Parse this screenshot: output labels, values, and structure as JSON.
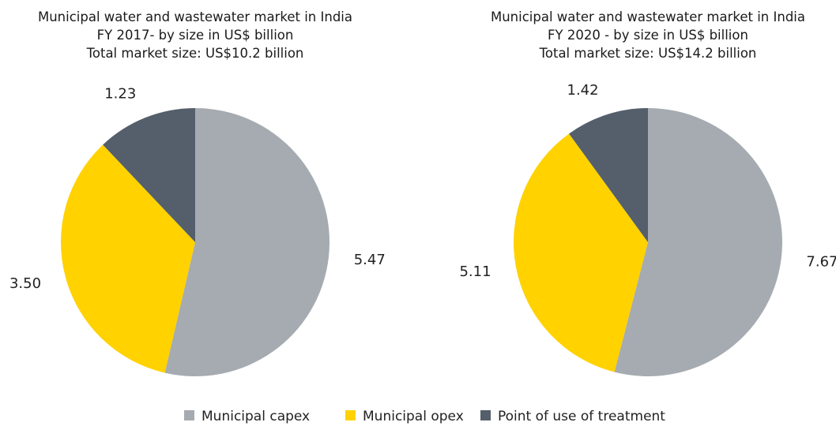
{
  "chart_data": [
    {
      "type": "pie",
      "title": "Municipal water and wastewater market in India FY 2017- by size in US$ billion",
      "subtitle": "Total market size: US$10.2 billion",
      "categories": [
        "Municipal capex",
        "Municipal opex",
        "Point of use of treatment"
      ],
      "values": [
        5.47,
        3.5,
        1.23
      ],
      "value_labels": [
        "5.47",
        "3.50",
        "1.23"
      ],
      "colors": [
        "#a5abb0",
        "#ffd200",
        "#545f6b"
      ]
    },
    {
      "type": "pie",
      "title": "Municipal water and wastewater market in India FY 2020 - by size in US$ billion",
      "subtitle": "Total market size: US$14.2 billion",
      "categories": [
        "Municipal capex",
        "Municipal opex",
        "Point of use of treatment"
      ],
      "values": [
        7.67,
        5.11,
        1.42
      ],
      "value_labels": [
        "7.67",
        "5.11",
        "1.42"
      ],
      "colors": [
        "#a5abb0",
        "#ffd200",
        "#545f6b"
      ]
    }
  ]
}
